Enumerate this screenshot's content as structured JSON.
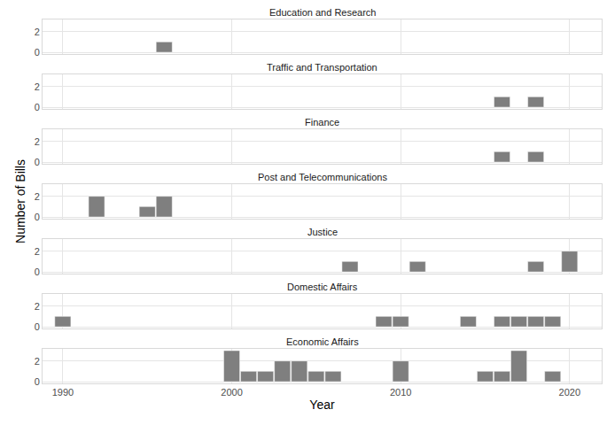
{
  "chart_data": [
    {
      "type": "bar",
      "title": "Education and Research",
      "x": [
        1996
      ],
      "values": [
        1
      ],
      "xlim": [
        1988.8,
        2021.9
      ],
      "xticks": [
        1990,
        2000,
        2010,
        2020
      ],
      "ylim": [
        -0.15,
        3.15
      ],
      "yticks": [
        0,
        2
      ],
      "color": "#7f7f7f",
      "grid": true,
      "tick_labels": "y"
    },
    {
      "type": "bar",
      "title": "Traffic and Transportation",
      "x": [
        2016,
        2018
      ],
      "values": [
        1,
        1
      ],
      "xlim": [
        1988.8,
        2021.9
      ],
      "xticks": [
        1990,
        2000,
        2010,
        2020
      ],
      "ylim": [
        -0.15,
        3.15
      ],
      "yticks": [
        0,
        2
      ],
      "color": "#7f7f7f",
      "grid": true,
      "tick_labels": "y"
    },
    {
      "type": "bar",
      "title": "Finance",
      "x": [
        2016,
        2018
      ],
      "values": [
        1,
        1
      ],
      "xlim": [
        1988.8,
        2021.9
      ],
      "xticks": [
        1990,
        2000,
        2010,
        2020
      ],
      "ylim": [
        -0.15,
        3.15
      ],
      "yticks": [
        0,
        2
      ],
      "color": "#7f7f7f",
      "grid": true,
      "tick_labels": "y"
    },
    {
      "type": "bar",
      "title": "Post and Telecommunications",
      "ylabel": "Number of Bills",
      "x": [
        1992,
        1995,
        1996
      ],
      "values": [
        2,
        1,
        2
      ],
      "xlim": [
        1988.8,
        2021.9
      ],
      "xticks": [
        1990,
        2000,
        2010,
        2020
      ],
      "ylim": [
        -0.15,
        3.15
      ],
      "yticks": [
        0,
        2
      ],
      "color": "#7f7f7f",
      "grid": true,
      "tick_labels": "y"
    },
    {
      "type": "bar",
      "title": "Justice",
      "x": [
        2007,
        2011,
        2018,
        2020
      ],
      "values": [
        1,
        1,
        1,
        2
      ],
      "xlim": [
        1988.8,
        2021.9
      ],
      "xticks": [
        1990,
        2000,
        2010,
        2020
      ],
      "ylim": [
        -0.15,
        3.15
      ],
      "yticks": [
        0,
        2
      ],
      "color": "#7f7f7f",
      "grid": true,
      "tick_labels": "y"
    },
    {
      "type": "bar",
      "title": "Domestic Affairs",
      "x": [
        1990,
        2009,
        2010,
        2014,
        2016,
        2017,
        2018,
        2019
      ],
      "values": [
        1,
        1,
        1,
        1,
        1,
        1,
        1,
        1
      ],
      "xlim": [
        1988.8,
        2021.9
      ],
      "xticks": [
        1990,
        2000,
        2010,
        2020
      ],
      "ylim": [
        -0.15,
        3.15
      ],
      "yticks": [
        0,
        2
      ],
      "color": "#7f7f7f",
      "grid": true,
      "tick_labels": "y"
    },
    {
      "type": "bar",
      "title": "Economic Affairs",
      "xlabel": "Year",
      "x": [
        2000,
        2001,
        2002,
        2003,
        2004,
        2005,
        2006,
        2010,
        2015,
        2016,
        2017,
        2019
      ],
      "values": [
        3,
        1,
        1,
        2,
        2,
        1,
        1,
        2,
        1,
        1,
        3,
        1
      ],
      "xlim": [
        1988.8,
        2021.9
      ],
      "xticks": [
        1990,
        2000,
        2010,
        2020
      ],
      "ylim": [
        -0.15,
        3.15
      ],
      "yticks": [
        0,
        2
      ],
      "color": "#7f7f7f",
      "grid": true
    }
  ]
}
